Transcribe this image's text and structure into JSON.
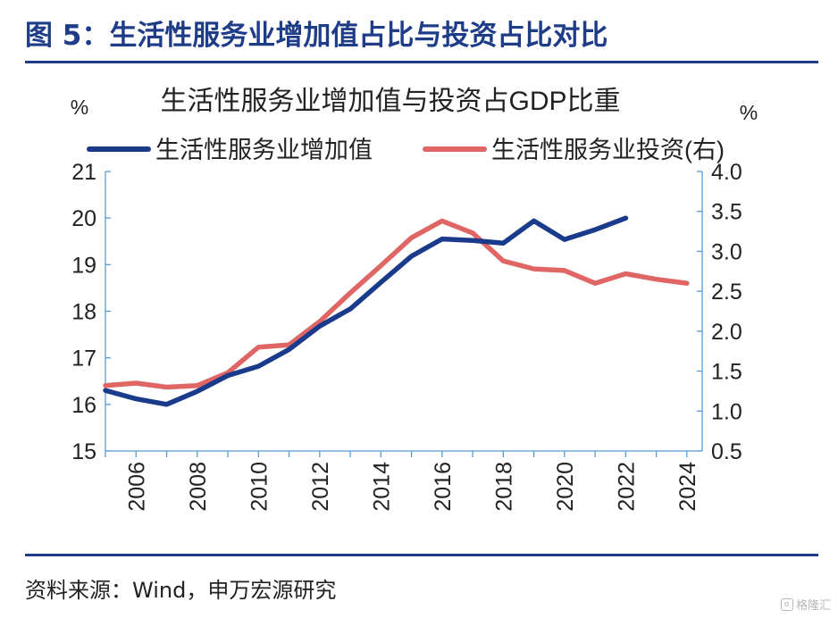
{
  "figure": {
    "title": "图 5：生活性服务业增加值占比与投资占比对比",
    "source": "资料来源：Wind，申万宏源研究",
    "watermark": "格隆汇"
  },
  "chart_data": {
    "type": "line",
    "title": "生活性服务业增加值与投资占GDP比重",
    "ylabel_left": "%",
    "ylabel_right": "%",
    "legend_position": "top",
    "x_ticks": [
      "2006",
      "2008",
      "2010",
      "2012",
      "2014",
      "2016",
      "2018",
      "2020",
      "2022",
      "2024"
    ],
    "xlim": [
      2005,
      2024.5
    ],
    "y_left": {
      "min": 15,
      "max": 21,
      "ticks": [
        "15",
        "16",
        "17",
        "18",
        "19",
        "20",
        "21"
      ]
    },
    "y_right": {
      "min": 0.5,
      "max": 4.0,
      "ticks": [
        "0.5",
        "1.0",
        "1.5",
        "2.0",
        "2.5",
        "3.0",
        "3.5",
        "4.0"
      ]
    },
    "grid": false,
    "series": [
      {
        "name": "生活性服务业增加值",
        "axis": "left",
        "color": "#1a3a8c",
        "x": [
          2005,
          2006,
          2007,
          2008,
          2009,
          2010,
          2011,
          2012,
          2013,
          2014,
          2015,
          2016,
          2017,
          2018,
          2019,
          2020,
          2021,
          2022
        ],
        "y": [
          16.3,
          16.12,
          16.0,
          16.28,
          16.62,
          16.82,
          17.18,
          17.68,
          18.05,
          18.62,
          19.18,
          19.55,
          19.52,
          19.46,
          19.94,
          19.54,
          19.75,
          20.0
        ]
      },
      {
        "name": "生活性服务业投资(右)",
        "axis": "right",
        "color": "#e06666",
        "x": [
          2005,
          2006,
          2007,
          2008,
          2009,
          2010,
          2011,
          2012,
          2013,
          2014,
          2015,
          2016,
          2017,
          2018,
          2019,
          2020,
          2021,
          2022,
          2023,
          2024
        ],
        "y": [
          1.32,
          1.35,
          1.3,
          1.32,
          1.48,
          1.8,
          1.83,
          2.12,
          2.48,
          2.82,
          3.17,
          3.38,
          3.23,
          2.88,
          2.78,
          2.76,
          2.6,
          2.72,
          2.65,
          2.6
        ]
      }
    ]
  }
}
